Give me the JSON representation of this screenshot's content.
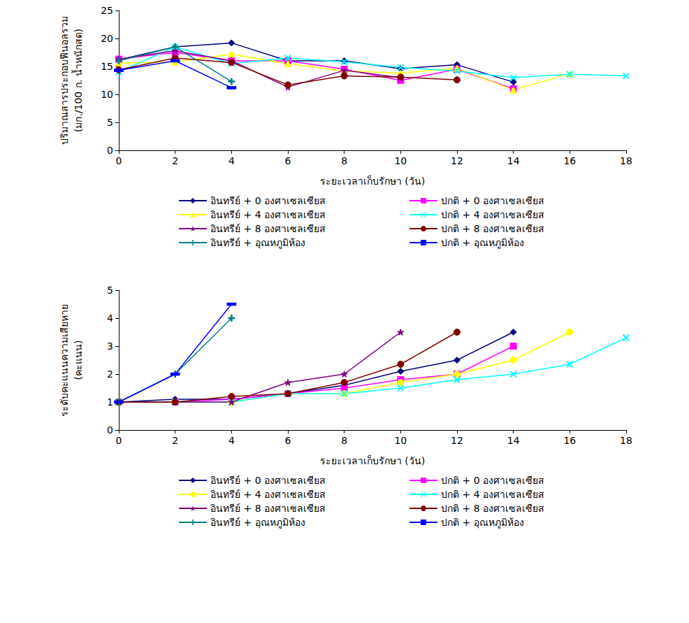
{
  "chart_data": [
    {
      "type": "line",
      "y_label": "ปริมาณสารประกอบฟีนอลรวม\n(มก./100 ก. น้ำหนักสด)",
      "x_label": "ระยะเวลาเก็บรักษา (วัน)",
      "x": [
        0,
        2,
        4,
        6,
        8,
        10,
        12,
        14,
        16,
        18
      ],
      "xlim": [
        0,
        18
      ],
      "xticks": [
        0,
        2,
        4,
        6,
        8,
        10,
        12,
        14,
        16,
        18
      ],
      "ylim": [
        0,
        25
      ],
      "yticks": [
        0,
        5,
        10,
        15,
        20,
        25
      ],
      "grid": false,
      "legend": "bottom",
      "series": [
        {
          "name": "อินทรีย์ + 0 องศาเซลเซียส",
          "color": "#000080",
          "marker": "diamond",
          "values": [
            16.2,
            18.5,
            19.2,
            16.0,
            16.0,
            14.6,
            15.3,
            12.2,
            null,
            null
          ]
        },
        {
          "name": "ปกติ + 0 องศาเซลเซียส",
          "color": "#ff00ff",
          "marker": "square",
          "values": [
            16.3,
            17.5,
            16.0,
            16.0,
            14.5,
            12.5,
            14.5,
            11.0,
            null,
            null
          ]
        },
        {
          "name": "อินทรีย์ + 4 องศาเซลเซียส",
          "color": "#ffff00",
          "marker": "triangle",
          "values": [
            15.6,
            15.8,
            17.2,
            15.5,
            14.2,
            13.8,
            14.7,
            10.8,
            13.7,
            null
          ]
        },
        {
          "name": "ปกติ + 4 องศาเซลเซียส",
          "color": "#00ffff",
          "marker": "x",
          "values": [
            14.0,
            18.5,
            15.5,
            16.5,
            15.8,
            14.8,
            14.2,
            13.0,
            13.6,
            13.3
          ]
        },
        {
          "name": "อินทรีย์ + 8 องศาเซลเซียส",
          "color": "#800080",
          "marker": "star",
          "values": [
            16.3,
            17.8,
            16.0,
            11.3,
            14.3,
            13.0,
            null,
            null,
            null,
            null
          ]
        },
        {
          "name": "ปกติ + 8 องศาเซลเซียส",
          "color": "#800000",
          "marker": "circle",
          "values": [
            14.4,
            16.5,
            15.7,
            11.7,
            13.3,
            13.1,
            12.6,
            null,
            null,
            null
          ]
        },
        {
          "name": "อินทรีย์ + อุณหภูมิห้อง",
          "color": "#008080",
          "marker": "plus",
          "values": [
            16.0,
            18.5,
            12.3,
            null,
            null,
            null,
            null,
            null,
            null,
            null
          ]
        },
        {
          "name": "ปกติ + อุณหภูมิห้อง",
          "color": "#0000ff",
          "marker": "dash",
          "values": [
            14.3,
            16.0,
            11.2,
            null,
            null,
            null,
            null,
            null,
            null,
            null
          ]
        }
      ]
    },
    {
      "type": "line",
      "y_label": "ระดับคะแนนความเสียหาย\n(คะแนน)",
      "x_label": "ระยะเวลาเก็บรักษา (วัน)",
      "x": [
        0,
        2,
        4,
        6,
        8,
        10,
        12,
        14,
        16,
        18
      ],
      "xlim": [
        0,
        18
      ],
      "xticks": [
        0,
        2,
        4,
        6,
        8,
        10,
        12,
        14,
        16,
        18
      ],
      "ylim": [
        0,
        5
      ],
      "yticks": [
        0,
        1,
        2,
        3,
        4,
        5
      ],
      "grid": false,
      "legend": "bottom",
      "series": [
        {
          "name": "อินทรีย์ + 0 องศาเซลเซียส",
          "color": "#000080",
          "marker": "diamond",
          "values": [
            1.0,
            1.1,
            1.1,
            1.3,
            1.6,
            2.1,
            2.5,
            3.5,
            null,
            null
          ]
        },
        {
          "name": "ปกติ + 0 องศาเซลเซียส",
          "color": "#ff00ff",
          "marker": "square",
          "values": [
            1.0,
            1.0,
            1.1,
            1.3,
            1.5,
            1.8,
            2.0,
            3.0,
            null,
            null
          ]
        },
        {
          "name": "อินทรีย์ + 4 องศาเซลเซียส",
          "color": "#ffff00",
          "marker": "circle",
          "values": [
            1.0,
            1.0,
            1.0,
            1.3,
            1.3,
            1.7,
            2.0,
            2.5,
            3.5,
            null
          ]
        },
        {
          "name": "ปกติ + 4 องศาเซลเซียส",
          "color": "#00ffff",
          "marker": "x",
          "values": [
            1.0,
            1.0,
            1.0,
            1.3,
            1.3,
            1.5,
            1.8,
            2.0,
            2.35,
            3.3
          ]
        },
        {
          "name": "อินทรีย์ + 8 องศาเซลเซียส",
          "color": "#800080",
          "marker": "star",
          "values": [
            1.0,
            1.0,
            1.0,
            1.7,
            2.0,
            3.5,
            null,
            null,
            null,
            null
          ]
        },
        {
          "name": "ปกติ + 8 องศาเซลเซียส",
          "color": "#800000",
          "marker": "circle",
          "values": [
            1.0,
            1.0,
            1.2,
            1.3,
            1.7,
            2.35,
            3.5,
            null,
            null,
            null
          ]
        },
        {
          "name": "อินทรีย์ + อุณหภูมิห้อง",
          "color": "#008080",
          "marker": "plus",
          "values": [
            1.0,
            2.0,
            4.0,
            null,
            null,
            null,
            null,
            null,
            null,
            null
          ]
        },
        {
          "name": "ปกติ + อุณหภูมิห้อง",
          "color": "#0000ff",
          "marker": "dash",
          "values": [
            1.0,
            2.0,
            4.5,
            null,
            null,
            null,
            null,
            null,
            null,
            null
          ]
        }
      ]
    }
  ]
}
